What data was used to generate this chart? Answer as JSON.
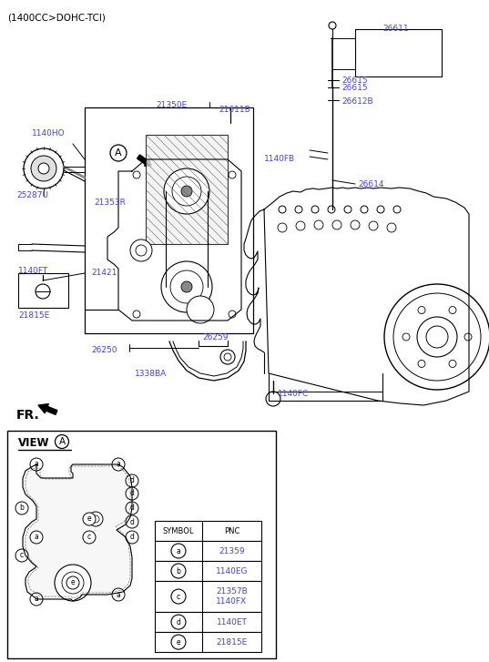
{
  "title": "(1400CC>DOHC-TCI)",
  "bg_color": "#ffffff",
  "label_color": "#4444cc",
  "line_color": "#000000",
  "figsize": [
    5.37,
    7.27
  ],
  "dpi": 100,
  "table_rows": [
    {
      "sym": "a",
      "pnc": "21359",
      "pnc_blue": true
    },
    {
      "sym": "b",
      "pnc": "1140EG",
      "pnc_blue": true
    },
    {
      "sym": "c",
      "pnc": "21357B\n1140FX",
      "pnc_blue": true
    },
    {
      "sym": "d",
      "pnc": "1140ET",
      "pnc_blue": true
    },
    {
      "sym": "e",
      "pnc": "21815E",
      "pnc_blue": true
    }
  ]
}
